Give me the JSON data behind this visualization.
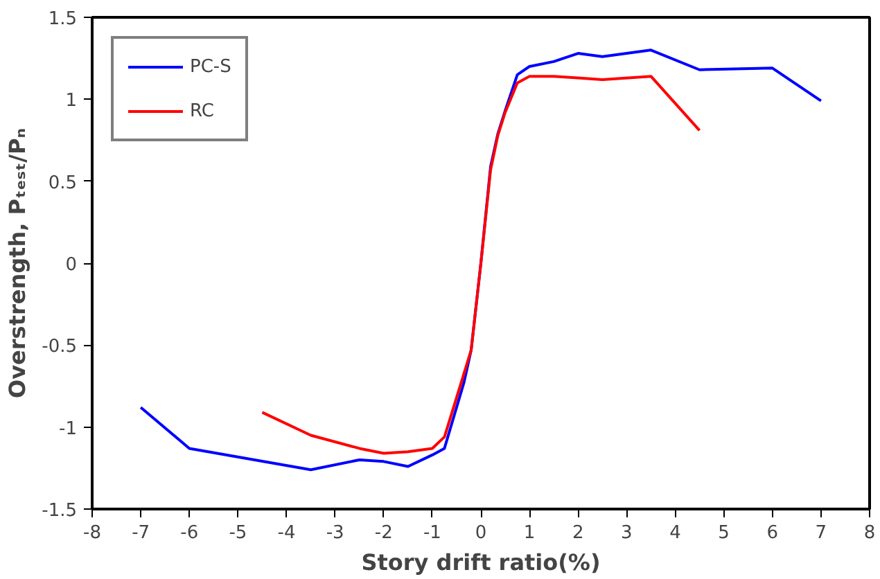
{
  "chart_data": {
    "type": "line",
    "xlabel": "Story drift ratio(%)",
    "ylabel": "Overstrength, Pₜₑₛₜ/Pₙ",
    "xlim": [
      -8,
      8
    ],
    "ylim": [
      -1.5,
      1.5
    ],
    "xticks": [
      -8,
      -7,
      -6,
      -5,
      -4,
      -3,
      -2,
      -1,
      0,
      1,
      2,
      3,
      4,
      5,
      6,
      7,
      8
    ],
    "yticks": [
      -1.5,
      -1,
      -0.5,
      0,
      0.5,
      1,
      1.5
    ],
    "grid": false,
    "legend": "top left",
    "marker": "none",
    "line_style": "solid",
    "series": [
      {
        "name": "PC-S",
        "color": "#0000ff",
        "x": [
          -7,
          -6,
          -3.5,
          -2.5,
          -2,
          -1.5,
          -1,
          -0.75,
          -0.35,
          -0.2,
          0,
          0.2,
          0.35,
          0.5,
          0.75,
          1,
          1.5,
          2,
          2.5,
          3.5,
          4.5,
          6,
          7
        ],
        "values": [
          -0.88,
          -1.13,
          -1.26,
          -1.2,
          -1.21,
          -1.24,
          -1.17,
          -1.13,
          -0.73,
          -0.53,
          0,
          0.59,
          0.79,
          0.93,
          1.15,
          1.2,
          1.23,
          1.28,
          1.26,
          1.3,
          1.18,
          1.19,
          0.99
        ]
      },
      {
        "name": "RC",
        "color": "#ff0000",
        "x": [
          -4.5,
          -3.5,
          -2.5,
          -2,
          -1.5,
          -1,
          -0.75,
          -0.5,
          -0.2,
          0,
          0.2,
          0.35,
          0.5,
          0.75,
          1,
          1.5,
          2,
          2.5,
          3.5,
          4.5
        ],
        "values": [
          -0.91,
          -1.05,
          -1.13,
          -1.16,
          -1.15,
          -1.13,
          -1.06,
          -0.82,
          -0.53,
          0,
          0.57,
          0.78,
          0.92,
          1.1,
          1.14,
          1.14,
          1.13,
          1.12,
          1.14,
          0.81
        ]
      }
    ]
  }
}
